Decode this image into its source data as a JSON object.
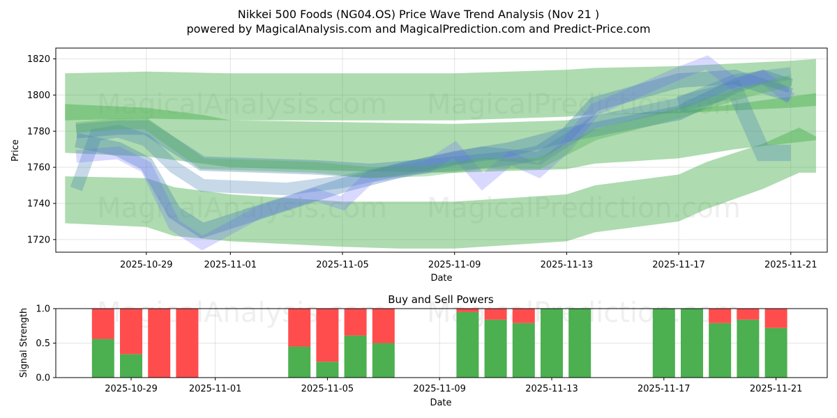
{
  "chart_data": [
    {
      "type": "area",
      "title": "Nikkei 500 Foods (NG04.OS) Price Wave Trend Analysis (Nov 21 )",
      "subtitle": "powered by MagicalAnalysis.com and MagicalPrediction.com and Predict-Price.com",
      "xlabel": "Date",
      "ylabel": "Price",
      "ylim": [
        1713,
        1826
      ],
      "xlim_days_from_2025_10_29": [
        -3.23,
        24.3
      ],
      "grid": true,
      "x_ticks": [
        {
          "day": 0,
          "label": "2025-10-29"
        },
        {
          "day": 3,
          "label": "2025-11-01"
        },
        {
          "day": 7,
          "label": "2025-11-05"
        },
        {
          "day": 11,
          "label": "2025-11-09"
        },
        {
          "day": 15,
          "label": "2025-11-13"
        },
        {
          "day": 19,
          "label": "2025-11-17"
        },
        {
          "day": 23,
          "label": "2025-11-21"
        }
      ],
      "y_ticks": [
        1720,
        1740,
        1760,
        1780,
        1800,
        1820
      ],
      "colors": {
        "band": "#4caf50",
        "wave": "#4682b4",
        "blue": "#6666ff"
      },
      "bands": [
        {
          "name": "upper-band",
          "points": [
            [
              -2.9,
              1812,
              1786
            ],
            [
              0,
              1813,
              1787
            ],
            [
              3,
              1812,
              1786
            ],
            [
              7,
              1812,
              1786
            ],
            [
              11,
              1812,
              1786
            ],
            [
              15,
              1814,
              1788
            ],
            [
              16,
              1815,
              1789
            ],
            [
              19,
              1816,
              1790
            ],
            [
              23,
              1819,
              1793
            ],
            [
              23.9,
              1820,
              1794
            ]
          ]
        },
        {
          "name": "middle-band",
          "points": [
            [
              -2.9,
              1795,
              1768
            ],
            [
              0,
              1793,
              1766
            ],
            [
              2,
              1789,
              1762
            ],
            [
              3,
              1786,
              1760
            ],
            [
              7,
              1785,
              1758
            ],
            [
              11,
              1784,
              1757
            ],
            [
              15,
              1786,
              1759
            ],
            [
              16,
              1789,
              1762
            ],
            [
              19,
              1791,
              1765
            ],
            [
              21,
              1795,
              1770
            ],
            [
              23.9,
              1801,
              1775
            ]
          ]
        },
        {
          "name": "lower-band",
          "points": [
            [
              -2.9,
              1755,
              1729
            ],
            [
              0,
              1754,
              1727
            ],
            [
              1,
              1749,
              1722
            ],
            [
              3,
              1745,
              1719
            ],
            [
              7,
              1741,
              1716
            ],
            [
              9,
              1741,
              1715
            ],
            [
              11,
              1741,
              1715
            ],
            [
              15,
              1745,
              1719
            ],
            [
              16,
              1750,
              1724
            ],
            [
              19,
              1756,
              1730
            ],
            [
              20,
              1763,
              1737
            ],
            [
              22,
              1773,
              1748
            ],
            [
              23.3,
              1782,
              1757
            ],
            [
              23.9,
              1777,
              1757
            ]
          ]
        }
      ],
      "waves": [
        {
          "name": "wave-a",
          "color": "wave",
          "width": 8,
          "opacity": 0.35,
          "points": [
            [
              -2.5,
              1780
            ],
            [
              -1,
              1782
            ],
            [
              0,
              1782
            ],
            [
              2,
              1762
            ],
            [
              6,
              1760
            ],
            [
              8,
              1758
            ],
            [
              11,
              1762
            ],
            [
              13,
              1765
            ],
            [
              14,
              1768
            ],
            [
              15,
              1778
            ],
            [
              19,
              1790
            ],
            [
              21,
              1805
            ],
            [
              22,
              1810
            ],
            [
              23,
              1805
            ]
          ]
        },
        {
          "name": "wave-b",
          "color": "wave",
          "width": 8,
          "opacity": 0.35,
          "points": [
            [
              -2.5,
              1775
            ],
            [
              -1,
              1770
            ],
            [
              0,
              1762
            ],
            [
              1,
              1735
            ],
            [
              2,
              1725
            ],
            [
              5,
              1740
            ],
            [
              7,
              1750
            ],
            [
              9,
              1758
            ],
            [
              11,
              1765
            ],
            [
              13,
              1770
            ],
            [
              15,
              1778
            ],
            [
              16,
              1795
            ],
            [
              19,
              1808
            ],
            [
              21,
              1810
            ],
            [
              23,
              1800
            ]
          ]
        },
        {
          "name": "wave-c",
          "color": "wave",
          "width": 7,
          "opacity": 0.3,
          "points": [
            [
              -2.5,
              1748
            ],
            [
              -1.8,
              1778
            ],
            [
              -1,
              1780
            ],
            [
              0,
              1775
            ],
            [
              1,
              1760
            ],
            [
              2,
              1750
            ],
            [
              5,
              1748
            ],
            [
              7,
              1752
            ],
            [
              10,
              1762
            ],
            [
              12,
              1768
            ],
            [
              14,
              1765
            ],
            [
              16,
              1785
            ],
            [
              19,
              1795
            ],
            [
              21,
              1808
            ],
            [
              23,
              1812
            ]
          ]
        },
        {
          "name": "wave-d",
          "color": "blue",
          "width": 7,
          "opacity": 0.25,
          "points": [
            [
              -2.5,
              1766
            ],
            [
              -1,
              1768
            ],
            [
              0,
              1760
            ],
            [
              1,
              1728
            ],
            [
              2,
              1718
            ],
            [
              4,
              1735
            ],
            [
              6,
              1745
            ],
            [
              7,
              1740
            ],
            [
              8,
              1755
            ],
            [
              10,
              1760
            ],
            [
              11,
              1770
            ],
            [
              12,
              1752
            ],
            [
              13,
              1765
            ],
            [
              14,
              1758
            ],
            [
              15,
              1772
            ],
            [
              16,
              1792
            ],
            [
              19,
              1812
            ],
            [
              20,
              1818
            ],
            [
              21,
              1806
            ],
            [
              22,
              1810
            ],
            [
              23,
              1798
            ]
          ]
        },
        {
          "name": "wave-e",
          "color": "wave",
          "width": 9,
          "opacity": 0.3,
          "points": [
            [
              19,
              1795
            ],
            [
              21,
              1803
            ],
            [
              22,
              1768
            ],
            [
              23,
              1768
            ]
          ]
        },
        {
          "name": "wave-f",
          "color": "band",
          "width": 6,
          "opacity": 0.35,
          "points": [
            [
              -2.5,
              1782
            ],
            [
              -1,
              1784
            ],
            [
              0,
              1784
            ],
            [
              2,
              1762
            ],
            [
              6,
              1760
            ],
            [
              8,
              1757
            ],
            [
              10,
              1758
            ],
            [
              12,
              1762
            ],
            [
              14,
              1762
            ],
            [
              16,
              1778
            ],
            [
              19,
              1790
            ],
            [
              21,
              1800
            ],
            [
              23,
              1808
            ]
          ]
        }
      ],
      "watermarks": [
        "MagicalAnalysis.com",
        "MagicalPrediction.com"
      ]
    },
    {
      "type": "bar",
      "title": "Buy and Sell Powers",
      "xlabel": "Date",
      "ylabel": "Signal Strength",
      "ylim": [
        0,
        1
      ],
      "y_ticks": [
        "0.0",
        "0.5",
        "1.0"
      ],
      "x_ticks": [
        {
          "day": 0,
          "label": "2025-10-29"
        },
        {
          "day": 3,
          "label": "2025-11-01"
        },
        {
          "day": 7,
          "label": "2025-11-05"
        },
        {
          "day": 11,
          "label": "2025-11-09"
        },
        {
          "day": 15,
          "label": "2025-11-13"
        },
        {
          "day": 19,
          "label": "2025-11-17"
        },
        {
          "day": 23,
          "label": "2025-11-21"
        }
      ],
      "colors": {
        "buy": "#4caf50",
        "sell": "#ff4d4d"
      },
      "categories": [
        "2025-10-28",
        "2025-10-29",
        "2025-10-30",
        "2025-10-31",
        "2025-11-04",
        "2025-11-05",
        "2025-11-06",
        "2025-11-07",
        "2025-11-10",
        "2025-11-11",
        "2025-11-12",
        "2025-11-13",
        "2025-11-14",
        "2025-11-17",
        "2025-11-18",
        "2025-11-19",
        "2025-11-20",
        "2025-11-21"
      ],
      "days": [
        -1,
        0,
        1,
        2,
        6,
        7,
        8,
        9,
        12,
        13,
        14,
        15,
        16,
        19,
        20,
        21,
        22,
        23
      ],
      "series": [
        {
          "name": "Buy",
          "values": [
            0.56,
            0.34,
            0,
            0,
            0.45,
            0.23,
            0.61,
            0.5,
            0.95,
            0.84,
            0.79,
            1.0,
            1.0,
            1.0,
            1.0,
            0.79,
            0.84,
            0.72
          ]
        },
        {
          "name": "Sell",
          "values": [
            0.44,
            0.66,
            1,
            1,
            0.55,
            0.77,
            0.39,
            0.5,
            0.05,
            0.16,
            0.21,
            0,
            0,
            0,
            0,
            0.21,
            0.16,
            0.28
          ]
        }
      ]
    }
  ]
}
